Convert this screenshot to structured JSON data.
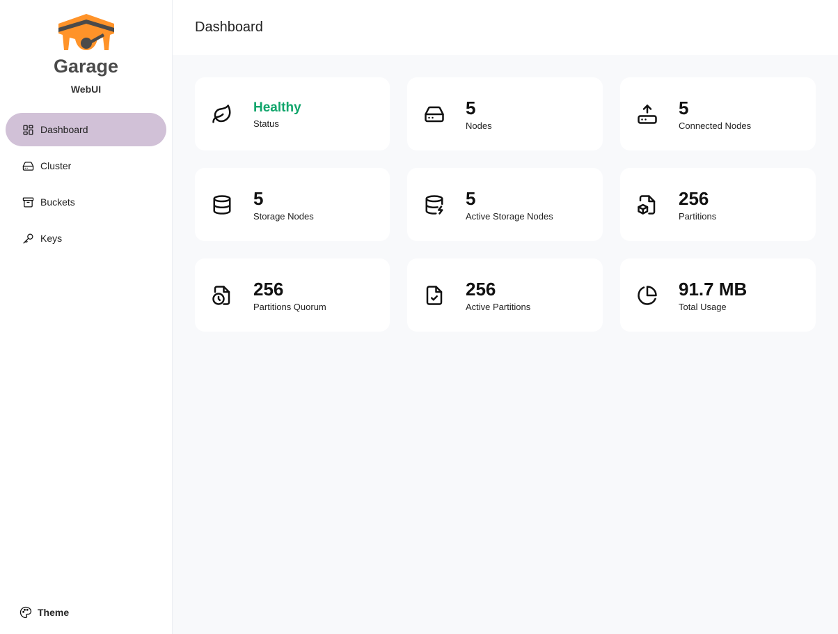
{
  "sidebar": {
    "brand": "Garage",
    "subtitle": "WebUI",
    "items": [
      {
        "label": "Dashboard",
        "icon": "dashboard-icon",
        "active": true
      },
      {
        "label": "Cluster",
        "icon": "hard-drive-icon"
      },
      {
        "label": "Buckets",
        "icon": "archive-icon"
      },
      {
        "label": "Keys",
        "icon": "key-icon"
      }
    ],
    "theme_label": "Theme"
  },
  "header": {
    "title": "Dashboard"
  },
  "colors": {
    "accent": "#d1c1d7",
    "healthy": "#10a56b",
    "logo": "#ff9329"
  },
  "cards": [
    {
      "value": "Healthy",
      "label": "Status",
      "icon": "leaf-icon"
    },
    {
      "value": "5",
      "label": "Nodes",
      "icon": "hard-drive-icon"
    },
    {
      "value": "5",
      "label": "Connected Nodes",
      "icon": "router-icon"
    },
    {
      "value": "5",
      "label": "Storage Nodes",
      "icon": "database-icon"
    },
    {
      "value": "5",
      "label": "Active Storage Nodes",
      "icon": "database-zap-icon"
    },
    {
      "value": "256",
      "label": "Partitions",
      "icon": "file-box-icon"
    },
    {
      "value": "256",
      "label": "Partitions Quorum",
      "icon": "file-clock-icon"
    },
    {
      "value": "256",
      "label": "Active Partitions",
      "icon": "file-check-icon"
    },
    {
      "value": "91.7 MB",
      "label": "Total Usage",
      "icon": "pie-chart-icon"
    }
  ]
}
